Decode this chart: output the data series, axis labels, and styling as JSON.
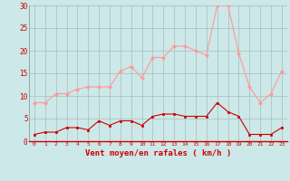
{
  "x": [
    0,
    1,
    2,
    3,
    4,
    5,
    6,
    7,
    8,
    9,
    10,
    11,
    12,
    13,
    14,
    15,
    16,
    17,
    18,
    19,
    20,
    21,
    22,
    23
  ],
  "rafales": [
    8.5,
    8.5,
    10.5,
    10.5,
    11.5,
    12,
    12,
    12,
    15.5,
    16.5,
    14,
    18.5,
    18.5,
    21,
    21,
    20,
    19,
    30,
    30,
    19.5,
    12,
    8.5,
    10.5,
    15.5
  ],
  "moyen": [
    1.5,
    2,
    2,
    3,
    3,
    2.5,
    4.5,
    3.5,
    4.5,
    4.5,
    3.5,
    5.5,
    6,
    6,
    5.5,
    5.5,
    5.5,
    8.5,
    6.5,
    5.5,
    1.5,
    1.5,
    1.5,
    3
  ],
  "bg_color": "#cce8e8",
  "grid_color": "#aabbbb",
  "line_color_rafales": "#ff9999",
  "line_color_moyen": "#cc0000",
  "marker_color_rafales": "#ff9999",
  "marker_color_moyen": "#cc0000",
  "xlabel": "Vent moyen/en rafales ( km/h )",
  "xlabel_color": "#cc0000",
  "tick_color": "#cc0000",
  "ylim": [
    0,
    30
  ],
  "yticks": [
    0,
    5,
    10,
    15,
    20,
    25,
    30
  ],
  "xlim": [
    -0.5,
    23.5
  ]
}
